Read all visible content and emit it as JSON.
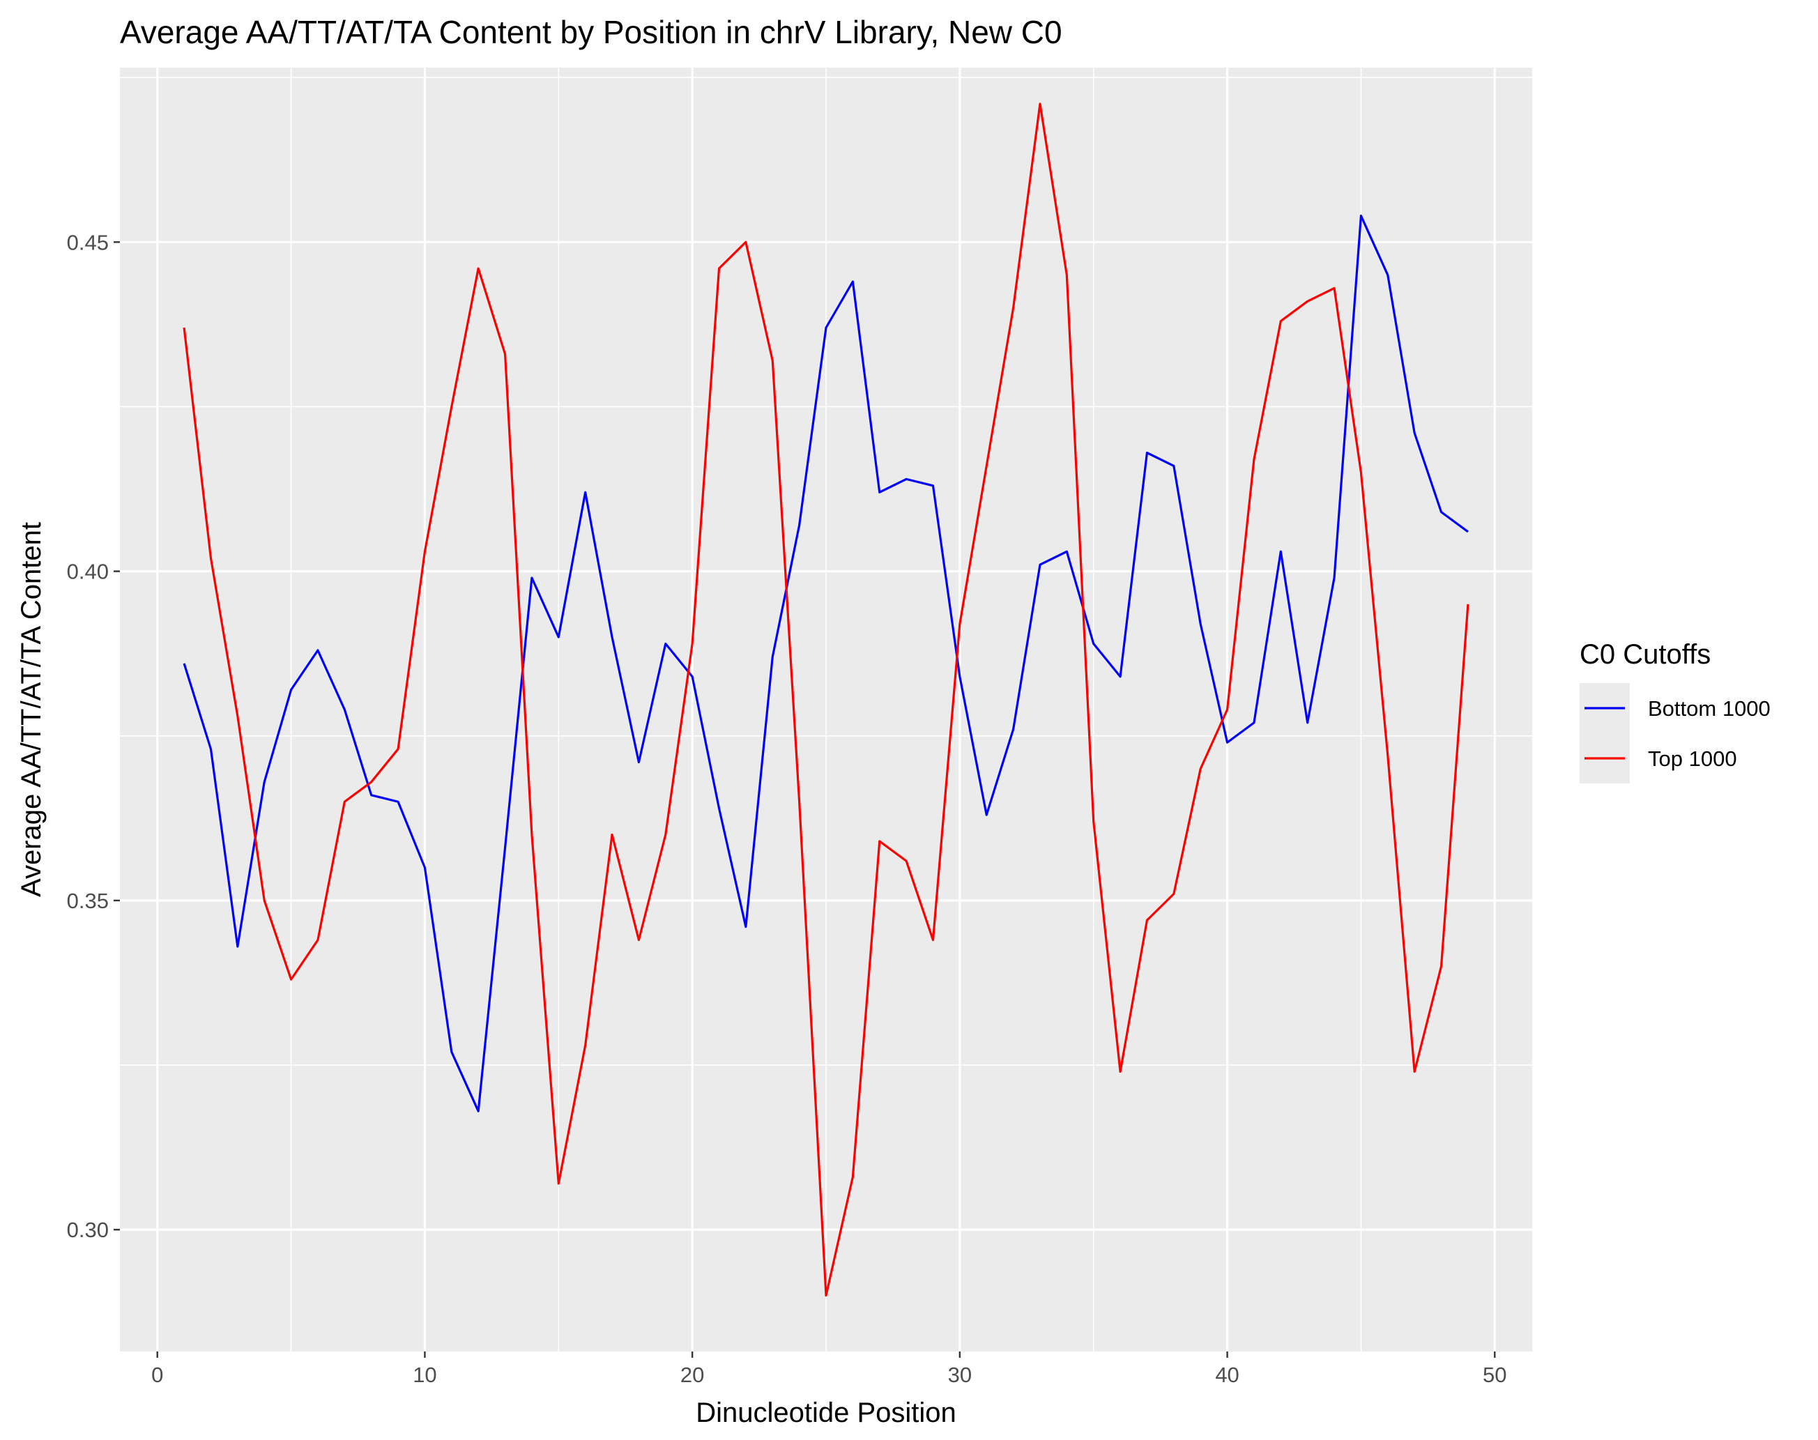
{
  "chart_data": {
    "type": "line",
    "title": "Average AA/TT/AT/TA Content by Position in chrV Library, New C0",
    "xlabel": "Dinucleotide Position",
    "ylabel": "Average AA/TT/AT/TA Content",
    "xlim": [
      -1.4,
      51.4
    ],
    "ylim": [
      0.2815,
      0.4765
    ],
    "x_ticks": [
      0,
      10,
      20,
      30,
      40,
      50
    ],
    "x_tick_labels": [
      "0",
      "10",
      "20",
      "30",
      "40",
      "50"
    ],
    "y_ticks": [
      0.3,
      0.35,
      0.4,
      0.45
    ],
    "y_tick_labels": [
      "0.30",
      "0.35",
      "0.40",
      "0.45"
    ],
    "grid": true,
    "legend": {
      "title": "C0 Cutoffs",
      "position": "right"
    },
    "x": [
      1,
      2,
      3,
      4,
      5,
      6,
      7,
      8,
      9,
      10,
      11,
      12,
      13,
      14,
      15,
      16,
      17,
      18,
      19,
      20,
      21,
      22,
      23,
      24,
      25,
      26,
      27,
      28,
      29,
      30,
      31,
      32,
      33,
      34,
      35,
      36,
      37,
      38,
      39,
      40,
      41,
      42,
      43,
      44,
      45,
      46,
      47,
      48,
      49
    ],
    "series": [
      {
        "name": "Bottom 1000",
        "color": "#0000ff",
        "values": [
          0.386,
          0.373,
          0.343,
          0.368,
          0.382,
          0.388,
          0.379,
          0.366,
          0.365,
          0.355,
          0.327,
          0.318,
          0.358,
          0.399,
          0.39,
          0.412,
          0.39,
          0.371,
          0.389,
          0.384,
          0.364,
          0.346,
          0.387,
          0.407,
          0.437,
          0.444,
          0.412,
          0.414,
          0.413,
          0.384,
          0.363,
          0.376,
          0.401,
          0.403,
          0.389,
          0.384,
          0.418,
          0.416,
          0.392,
          0.374,
          0.377,
          0.403,
          0.377,
          0.399,
          0.454,
          0.445,
          0.421,
          0.409,
          0.406
        ]
      },
      {
        "name": "Top 1000",
        "color": "#ff0000",
        "values": [
          0.437,
          0.402,
          0.378,
          0.35,
          0.338,
          0.344,
          0.365,
          0.368,
          0.373,
          0.403,
          0.425,
          0.446,
          0.433,
          0.36,
          0.307,
          0.328,
          0.36,
          0.344,
          0.36,
          0.389,
          0.446,
          0.45,
          0.432,
          0.365,
          0.29,
          0.308,
          0.359,
          0.356,
          0.344,
          0.392,
          0.416,
          0.44,
          0.471,
          0.445,
          0.362,
          0.324,
          0.347,
          0.351,
          0.37,
          0.379,
          0.417,
          0.438,
          0.441,
          0.443,
          0.415,
          0.372,
          0.324,
          0.34,
          0.395
        ]
      }
    ]
  }
}
